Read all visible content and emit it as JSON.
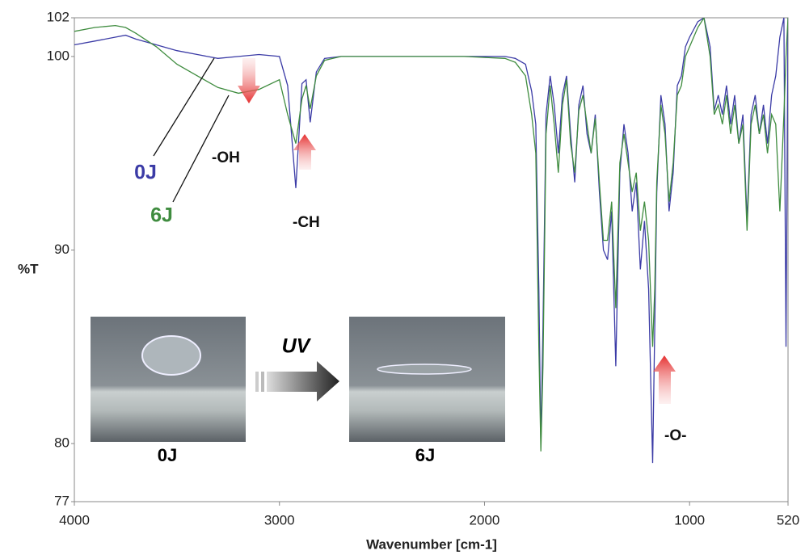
{
  "chart_data": {
    "type": "line",
    "xlabel": "Wavenumber [cm-1]",
    "ylabel": "%T",
    "xlim": [
      4000,
      520
    ],
    "ylim": [
      77,
      102
    ],
    "xticks": [
      4000,
      3000,
      2000,
      1000,
      520
    ],
    "yticks": [
      77,
      80,
      90,
      100,
      102
    ],
    "x": [
      4000,
      3900,
      3800,
      3750,
      3700,
      3600,
      3500,
      3400,
      3300,
      3200,
      3100,
      3000,
      2960,
      2920,
      2890,
      2870,
      2850,
      2820,
      2780,
      2700,
      2500,
      2300,
      2100,
      1900,
      1850,
      1800,
      1770,
      1750,
      1735,
      1725,
      1715,
      1700,
      1680,
      1660,
      1640,
      1620,
      1600,
      1580,
      1560,
      1540,
      1520,
      1500,
      1480,
      1460,
      1440,
      1420,
      1400,
      1380,
      1360,
      1340,
      1320,
      1300,
      1280,
      1260,
      1240,
      1220,
      1200,
      1180,
      1170,
      1160,
      1140,
      1120,
      1100,
      1080,
      1060,
      1040,
      1020,
      1000,
      960,
      930,
      900,
      880,
      860,
      840,
      820,
      800,
      780,
      760,
      740,
      720,
      700,
      680,
      660,
      640,
      620,
      600,
      580,
      560,
      540,
      530,
      520
    ],
    "series": [
      {
        "name": "0J",
        "color": "#3b3ba6",
        "values": [
          100.6,
          100.8,
          101.0,
          101.1,
          100.9,
          100.6,
          100.3,
          100.1,
          99.9,
          100.0,
          100.1,
          100.0,
          98.5,
          93.2,
          98.6,
          98.8,
          96.6,
          99.2,
          99.9,
          100.0,
          100.0,
          100.0,
          100.0,
          100.0,
          99.9,
          99.6,
          98.2,
          96.5,
          88.0,
          80.0,
          86.0,
          97.0,
          99.0,
          97.5,
          95.0,
          98.0,
          99.0,
          96.0,
          93.5,
          97.5,
          98.5,
          96.0,
          95.0,
          97.0,
          93.0,
          90.0,
          89.5,
          92.0,
          84.0,
          94.0,
          96.5,
          95.0,
          92.0,
          93.5,
          89.0,
          91.5,
          88.0,
          79.0,
          86.0,
          93.0,
          98.0,
          96.5,
          92.0,
          94.0,
          98.5,
          99.0,
          100.5,
          101.0,
          101.8,
          102.0,
          100.5,
          97.2,
          98.0,
          97.0,
          98.5,
          96.5,
          98.0,
          95.5,
          97.0,
          91.5,
          97.0,
          98.0,
          96.0,
          97.5,
          95.5,
          98.0,
          99.0,
          101.0,
          102.0,
          85.0,
          102.0
        ]
      },
      {
        "name": "6J",
        "color": "#3f8c3f",
        "values": [
          101.3,
          101.5,
          101.6,
          101.5,
          101.2,
          100.5,
          99.6,
          99.0,
          98.4,
          98.1,
          98.3,
          98.8,
          97.0,
          95.5,
          97.8,
          98.5,
          97.3,
          99.0,
          99.8,
          100.0,
          100.0,
          100.0,
          100.0,
          99.9,
          99.7,
          99.0,
          97.0,
          95.0,
          85.0,
          79.6,
          84.0,
          96.0,
          98.5,
          96.5,
          94.0,
          97.5,
          98.8,
          95.5,
          94.0,
          97.2,
          98.0,
          96.5,
          95.0,
          96.8,
          93.5,
          90.5,
          90.5,
          92.5,
          87.0,
          94.5,
          96.0,
          94.5,
          93.0,
          94.0,
          91.0,
          92.5,
          90.5,
          85.0,
          88.0,
          93.5,
          97.5,
          96.0,
          92.5,
          94.5,
          98.0,
          98.5,
          100.0,
          100.5,
          101.5,
          102.0,
          100.0,
          97.0,
          97.5,
          96.5,
          98.0,
          96.0,
          97.5,
          95.5,
          96.5,
          91.0,
          96.5,
          97.5,
          96.0,
          97.0,
          95.0,
          97.0,
          96.5,
          92.0,
          97.0,
          100.0,
          102.0
        ]
      }
    ],
    "annotations": [
      "-OH",
      "-CH",
      "-O-"
    ],
    "inset": {
      "before": "0J",
      "after": "6J",
      "process": "UV"
    }
  }
}
